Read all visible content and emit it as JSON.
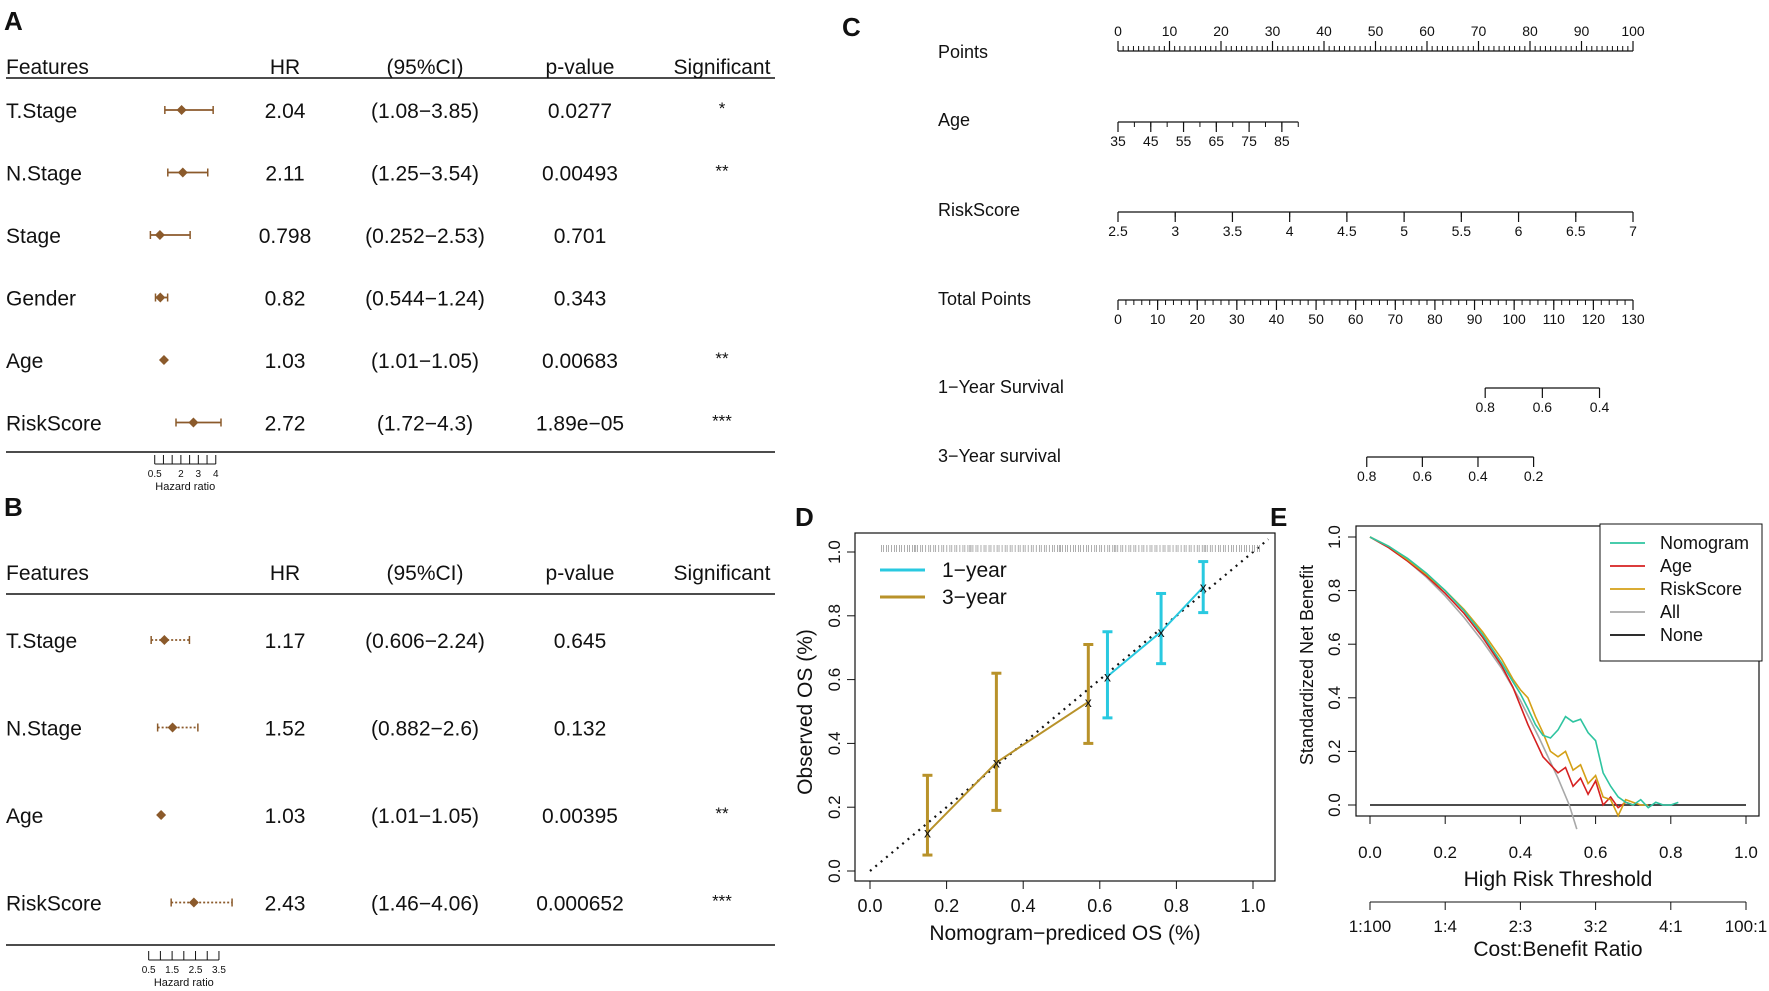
{
  "panels": {
    "A": "A",
    "B": "B",
    "C": "C",
    "D": "D",
    "E": "E"
  },
  "chart_data": [
    {
      "id": "A",
      "type": "forest",
      "headers": [
        "Features",
        "HR",
        "(95%CI)",
        "p-value",
        "Significant"
      ],
      "rows": [
        {
          "feature": "T.Stage",
          "hr": 2.04,
          "hr_text": "2.04",
          "ci_low": 1.08,
          "ci_high": 3.85,
          "ci_text": "(1.08−3.85)",
          "p": "0.0277",
          "sig": "*"
        },
        {
          "feature": "N.Stage",
          "hr": 2.11,
          "hr_text": "2.11",
          "ci_low": 1.25,
          "ci_high": 3.54,
          "ci_text": "(1.25−3.54)",
          "p": "0.00493",
          "sig": "**"
        },
        {
          "feature": "Stage",
          "hr": 0.798,
          "hr_text": "0.798",
          "ci_low": 0.252,
          "ci_high": 2.53,
          "ci_text": "(0.252−2.53)",
          "p": "0.701",
          "sig": ""
        },
        {
          "feature": "Gender",
          "hr": 0.82,
          "hr_text": "0.82",
          "ci_low": 0.544,
          "ci_high": 1.24,
          "ci_text": "(0.544−1.24)",
          "p": "0.343",
          "sig": ""
        },
        {
          "feature": "Age",
          "hr": 1.03,
          "hr_text": "1.03",
          "ci_low": 1.01,
          "ci_high": 1.05,
          "ci_text": "(1.01−1.05)",
          "p": "0.00683",
          "sig": "**"
        },
        {
          "feature": "RiskScore",
          "hr": 2.72,
          "hr_text": "2.72",
          "ci_low": 1.72,
          "ci_high": 4.3,
          "ci_text": "(1.72−4.3)",
          "p": "1.89e−05",
          "sig": "***"
        }
      ],
      "axis": {
        "min": 0,
        "max": 4.3,
        "ticks": [
          0.5,
          2,
          3,
          4
        ],
        "tick_labels": [
          "0.5",
          "2",
          "3",
          "4"
        ],
        "label": "Hazard ratio"
      }
    },
    {
      "id": "B",
      "type": "forest",
      "headers": [
        "Features",
        "HR",
        "(95%CI)",
        "p-value",
        "Significant"
      ],
      "rows": [
        {
          "feature": "T.Stage",
          "hr": 1.17,
          "hr_text": "1.17",
          "ci_low": 0.606,
          "ci_high": 2.24,
          "ci_text": "(0.606−2.24)",
          "p": "0.645",
          "sig": ""
        },
        {
          "feature": "N.Stage",
          "hr": 1.52,
          "hr_text": "1.52",
          "ci_low": 0.882,
          "ci_high": 2.6,
          "ci_text": "(0.882−2.6)",
          "p": "0.132",
          "sig": ""
        },
        {
          "feature": "Age",
          "hr": 1.03,
          "hr_text": "1.03",
          "ci_low": 1.01,
          "ci_high": 1.05,
          "ci_text": "(1.01−1.05)",
          "p": "0.00395",
          "sig": "**"
        },
        {
          "feature": "RiskScore",
          "hr": 2.43,
          "hr_text": "2.43",
          "ci_low": 1.46,
          "ci_high": 4.06,
          "ci_text": "(1.46−4.06)",
          "p": "0.000652",
          "sig": "***"
        }
      ],
      "axis": {
        "min": 0.3,
        "max": 4.1,
        "ticks": [
          0.5,
          1,
          1.5,
          2,
          2.5,
          3,
          3.5
        ],
        "tick_labels": [
          "0.5",
          "1.5",
          "2.5",
          "3.5"
        ],
        "label": "Hazard ratio"
      }
    },
    {
      "id": "C",
      "type": "nomogram",
      "scales": [
        {
          "name": "Points",
          "dmin": 0,
          "dmax": 100,
          "pmin": 0,
          "pmax": 100,
          "labels": [
            0,
            10,
            20,
            30,
            40,
            50,
            60,
            70,
            80,
            90,
            100
          ],
          "minor": 1,
          "label_pos": "above"
        },
        {
          "name": "Age",
          "dmin": 35,
          "dmax": 90,
          "pmin": 0,
          "pmax": 35,
          "labels": [
            35,
            45,
            55,
            65,
            75,
            85
          ],
          "minor": 5,
          "label_pos": "below"
        },
        {
          "name": "RiskScore",
          "dmin": 2.5,
          "dmax": 7,
          "pmin": 0,
          "pmax": 100,
          "labels": [
            2.5,
            3,
            3.5,
            4,
            4.5,
            5,
            5.5,
            6,
            6.5,
            7
          ],
          "minor": 0.5,
          "label_pos": "below"
        },
        {
          "name": "Total Points",
          "dmin": 0,
          "dmax": 130,
          "pmin": 0,
          "pmax": 100,
          "labels": [
            0,
            10,
            20,
            30,
            40,
            50,
            60,
            70,
            80,
            90,
            100,
            110,
            120,
            130
          ],
          "minor": 2,
          "label_pos": "below"
        },
        {
          "name": "1−Year Survival",
          "dmin": 0.8,
          "dmax": 0.4,
          "pmin": 71.3,
          "pmax": 93.5,
          "labels": [
            0.8,
            0.6,
            0.4
          ],
          "label_pos": "below"
        },
        {
          "name": "3−Year survival",
          "dmin": 0.8,
          "dmax": 0.2,
          "pmin": 48.3,
          "pmax": 80.7,
          "labels": [
            0.8,
            0.6,
            0.4,
            0.2
          ],
          "label_pos": "below"
        }
      ]
    },
    {
      "id": "D",
      "type": "calibration",
      "xlabel": "Nomogram−prediced OS (%)",
      "ylabel": "Observed OS (%)",
      "xlim": [
        0,
        1
      ],
      "ylim": [
        0,
        1
      ],
      "ticks": [
        0.0,
        0.2,
        0.4,
        0.6,
        0.8,
        1.0
      ],
      "tick_labels": [
        "0.0",
        "0.2",
        "0.4",
        "0.6",
        "0.8",
        "1.0"
      ],
      "series": [
        {
          "name": "1−year",
          "color": "#29c9e0",
          "x": [
            0.62,
            0.76,
            0.87
          ],
          "y": [
            0.61,
            0.75,
            0.89
          ],
          "lo": [
            0.48,
            0.65,
            0.81
          ],
          "hi": [
            0.75,
            0.87,
            0.97
          ]
        },
        {
          "name": "3−year",
          "color": "#b8922a",
          "x": [
            0.15,
            0.33,
            0.57
          ],
          "y": [
            0.12,
            0.34,
            0.53
          ],
          "lo": [
            0.05,
            0.19,
            0.4
          ],
          "hi": [
            0.3,
            0.62,
            0.71
          ]
        }
      ]
    },
    {
      "id": "E",
      "type": "line",
      "title": "",
      "xlabel": "High Risk Threshold",
      "ylabel": "Standardized Net Benefit",
      "x2label": "Cost:Benefit Ratio",
      "xlim": [
        0,
        1
      ],
      "ylim": [
        0,
        1
      ],
      "xticks": [
        0.0,
        0.2,
        0.4,
        0.6,
        0.8,
        1.0
      ],
      "xtick_labels": [
        "0.0",
        "0.2",
        "0.4",
        "0.6",
        "0.8",
        "1.0"
      ],
      "yticks": [
        0.0,
        0.2,
        0.4,
        0.6,
        0.8,
        1.0
      ],
      "ytick_labels": [
        "0.0",
        "0.2",
        "0.4",
        "0.6",
        "0.8",
        "1.0"
      ],
      "x2ticks": [
        0.01,
        0.2,
        0.4,
        0.6,
        0.8,
        0.99
      ],
      "x2tick_labels": [
        "1:100",
        "1:4",
        "2:3",
        "3:2",
        "4:1",
        "100:1"
      ],
      "series": [
        {
          "name": "Nomogram",
          "color": "#2ec4a0",
          "x": [
            0,
            0.05,
            0.1,
            0.15,
            0.2,
            0.25,
            0.3,
            0.35,
            0.38,
            0.4,
            0.42,
            0.44,
            0.46,
            0.48,
            0.5,
            0.52,
            0.54,
            0.56,
            0.58,
            0.6,
            0.62,
            0.64,
            0.66,
            0.68,
            0.7,
            0.72,
            0.74,
            0.76,
            0.78,
            0.8,
            0.82
          ],
          "y": [
            1,
            0.965,
            0.92,
            0.865,
            0.8,
            0.725,
            0.635,
            0.53,
            0.46,
            0.415,
            0.36,
            0.3,
            0.26,
            0.25,
            0.28,
            0.33,
            0.31,
            0.32,
            0.27,
            0.24,
            0.12,
            0.07,
            0.03,
            0.01,
            0.0,
            0.02,
            -0.01,
            0.01,
            0.0,
            0.0,
            0.01
          ]
        },
        {
          "name": "Age",
          "color": "#d62020",
          "x": [
            0,
            0.05,
            0.1,
            0.15,
            0.2,
            0.25,
            0.3,
            0.35,
            0.38,
            0.4,
            0.42,
            0.44,
            0.46,
            0.48,
            0.5,
            0.52,
            0.54,
            0.56,
            0.58,
            0.6,
            0.62,
            0.64,
            0.66,
            0.68,
            0.7
          ],
          "y": [
            1,
            0.96,
            0.91,
            0.855,
            0.79,
            0.715,
            0.625,
            0.52,
            0.44,
            0.37,
            0.3,
            0.24,
            0.18,
            0.15,
            0.12,
            0.14,
            0.07,
            0.1,
            0.04,
            0.09,
            0.0,
            0.03,
            -0.01,
            0.01,
            0.0
          ]
        },
        {
          "name": "RiskScore",
          "color": "#d4a017",
          "x": [
            0,
            0.05,
            0.1,
            0.15,
            0.2,
            0.25,
            0.3,
            0.35,
            0.38,
            0.4,
            0.42,
            0.44,
            0.46,
            0.48,
            0.5,
            0.52,
            0.54,
            0.56,
            0.58,
            0.6,
            0.62,
            0.64,
            0.66,
            0.68,
            0.7,
            0.72,
            0.74
          ],
          "y": [
            1,
            0.965,
            0.915,
            0.86,
            0.8,
            0.73,
            0.645,
            0.545,
            0.47,
            0.43,
            0.4,
            0.33,
            0.27,
            0.2,
            0.18,
            0.2,
            0.13,
            0.15,
            0.08,
            0.11,
            0.03,
            0.02,
            -0.04,
            0.02,
            0.01,
            0.0,
            0.0
          ]
        },
        {
          "name": "All",
          "color": "#a8a8a8",
          "x": [
            0,
            0.05,
            0.1,
            0.15,
            0.2,
            0.25,
            0.3,
            0.35,
            0.4,
            0.45,
            0.5,
            0.53,
            0.55
          ],
          "y": [
            1,
            0.96,
            0.91,
            0.85,
            0.78,
            0.7,
            0.61,
            0.51,
            0.39,
            0.25,
            0.1,
            0.0,
            -0.09
          ]
        },
        {
          "name": "None",
          "color": "#111111",
          "x": [
            0,
            1
          ],
          "y": [
            0,
            0
          ]
        }
      ]
    }
  ]
}
